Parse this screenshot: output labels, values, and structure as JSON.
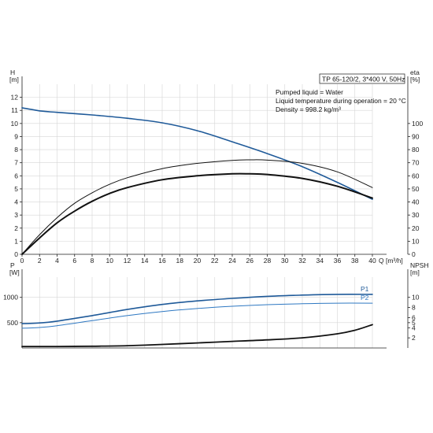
{
  "colors": {
    "blue": "#1f5a99",
    "lightblue": "#2e78c2",
    "black": "#111111",
    "grid": "#d6d6d6"
  },
  "chart_data": [
    {
      "type": "line",
      "id": "qh",
      "y_left_label": [
        "H",
        "[m]"
      ],
      "y_right_label": [
        "eta",
        "[%]"
      ],
      "x_label": "Q [m³/h]",
      "xlim": [
        0,
        40
      ],
      "ylim_left": [
        0,
        13
      ],
      "ylim_right": [
        0,
        130
      ],
      "x_ticks": [
        0,
        2,
        4,
        6,
        8,
        10,
        12,
        14,
        16,
        18,
        20,
        22,
        24,
        26,
        28,
        30,
        32,
        34,
        36,
        38,
        40
      ],
      "y_left_ticks": [
        0,
        1,
        2,
        3,
        4,
        5,
        6,
        7,
        8,
        9,
        10,
        11,
        12
      ],
      "y_right_ticks": [
        0,
        10,
        20,
        30,
        40,
        50,
        60,
        70,
        80,
        90,
        100
      ],
      "grid": true,
      "info_box": {
        "title": "TP 65-120/2, 3*400 V, 50Hz",
        "lines": [
          "Pumped liquid = Water",
          "Liquid temperature during operation = 20 °C",
          "Density = 998.2 kg/m³"
        ]
      },
      "series": [
        {
          "axis": "left",
          "color": "#1f5a99",
          "width": 1.6,
          "x": [
            0,
            2.2,
            4,
            8,
            12,
            16,
            20,
            24,
            28,
            32,
            36,
            40
          ],
          "y": [
            11.2,
            10.95,
            10.85,
            10.65,
            10.4,
            10.05,
            9.45,
            8.6,
            7.7,
            6.7,
            5.5,
            4.2
          ]
        },
        {
          "axis": "left",
          "color": "#111111",
          "width": 1.0,
          "x": [
            0,
            2,
            4,
            6,
            8,
            10,
            12,
            16,
            20,
            24,
            26,
            28,
            32,
            36,
            40
          ],
          "y": [
            0,
            1.5,
            2.8,
            3.9,
            4.7,
            5.35,
            5.85,
            6.55,
            6.95,
            7.18,
            7.22,
            7.2,
            6.95,
            6.3,
            5.1
          ]
        },
        {
          "axis": "left",
          "color": "#111111",
          "width": 2.0,
          "x": [
            0,
            2,
            4,
            6,
            8,
            10,
            12,
            16,
            20,
            24,
            26,
            28,
            32,
            36,
            40
          ],
          "y": [
            0,
            1.25,
            2.4,
            3.3,
            4.05,
            4.65,
            5.1,
            5.7,
            6.0,
            6.15,
            6.15,
            6.1,
            5.8,
            5.2,
            4.3
          ]
        }
      ]
    },
    {
      "type": "line",
      "id": "power",
      "y_left_label": [
        "P",
        "[W]"
      ],
      "y_right_label": [
        "NPSH",
        "[m]"
      ],
      "xlim": [
        0,
        40
      ],
      "ylim_left": [
        0,
        1400
      ],
      "ylim_right": [
        0,
        14
      ],
      "y_left_ticks": [
        500,
        1000
      ],
      "y_right_ticks": [
        2,
        4,
        5,
        6,
        8,
        10
      ],
      "grid": true,
      "series": [
        {
          "name": "P1",
          "axis": "left",
          "color": "#1f5a99",
          "width": 1.6,
          "x": [
            0,
            2,
            4,
            8,
            12,
            16,
            20,
            24,
            28,
            32,
            36,
            40
          ],
          "y": [
            480,
            495,
            530,
            640,
            760,
            860,
            930,
            980,
            1020,
            1045,
            1060,
            1060
          ]
        },
        {
          "name": "P2",
          "axis": "left",
          "color": "#2e78c2",
          "width": 1.0,
          "x": [
            0,
            2,
            4,
            8,
            12,
            16,
            20,
            24,
            28,
            32,
            36,
            40
          ],
          "y": [
            390,
            405,
            440,
            540,
            640,
            720,
            780,
            825,
            855,
            875,
            885,
            885
          ]
        },
        {
          "axis": "right",
          "color": "#111111",
          "width": 1.8,
          "x": [
            0,
            4,
            8,
            12,
            16,
            20,
            24,
            28,
            32,
            36,
            38,
            40
          ],
          "y": [
            0.3,
            0.3,
            0.35,
            0.45,
            0.7,
            1.0,
            1.3,
            1.6,
            2.0,
            2.8,
            3.5,
            4.6
          ]
        }
      ]
    }
  ]
}
